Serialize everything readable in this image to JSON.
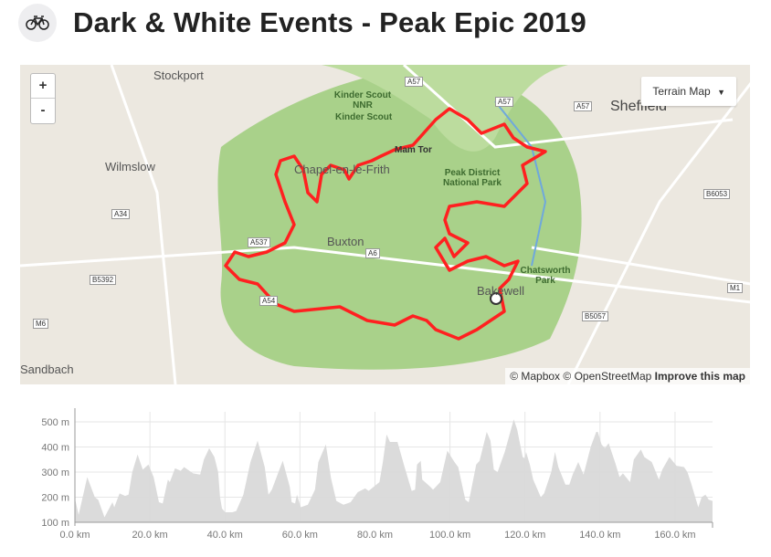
{
  "header": {
    "title": "Dark & White Events - Peak Epic 2019",
    "icon": "bicycle-icon"
  },
  "map": {
    "zoom_in": "+",
    "zoom_out": "-",
    "map_type": "Terrain Map",
    "places": [
      "Stockport",
      "Sheffield",
      "Wilmslow",
      "Chapel-en-le-Frith",
      "Buxton",
      "Bakewell",
      "Sandbach"
    ],
    "parks": [
      "Kinder Scout NNR",
      "Kinder Scout",
      "Mam Tor",
      "Peak District National Park",
      "Chatsworth Park"
    ],
    "roads": [
      "A57",
      "A57",
      "A57",
      "A34",
      "A537",
      "A6",
      "B5392",
      "A54",
      "M6",
      "B6053",
      "M1",
      "B5057"
    ],
    "attribution": {
      "mapbox": "© Mapbox",
      "osm": "© OpenStreetMap",
      "improve": "Improve this map"
    },
    "route_color": "#ff2020"
  },
  "chart_data": {
    "type": "area",
    "xlabel": "",
    "ylabel": "",
    "xlim": [
      0,
      170
    ],
    "ylim": [
      100,
      540
    ],
    "xticks": [
      "0.0 km",
      "20.0 km",
      "40.0 km",
      "60.0 km",
      "80.0 km",
      "100.0 km",
      "120.0 km",
      "140.0 km",
      "160.0 km"
    ],
    "yticks": [
      "100 m",
      "200 m",
      "300 m",
      "400 m",
      "500 m"
    ],
    "grid": true,
    "fill": "#d9d9d9",
    "points": [
      [
        0,
        195
      ],
      [
        1,
        130
      ],
      [
        3.3,
        280
      ],
      [
        5.3,
        200
      ],
      [
        6.2,
        190
      ],
      [
        7.9,
        120
      ],
      [
        10,
        180
      ],
      [
        10.5,
        160
      ],
      [
        11.9,
        215
      ],
      [
        13.4,
        205
      ],
      [
        14.3,
        210
      ],
      [
        15.3,
        300
      ],
      [
        16.7,
        370
      ],
      [
        18.1,
        310
      ],
      [
        19.6,
        330
      ],
      [
        21,
        280
      ],
      [
        22.4,
        180
      ],
      [
        23.4,
        175
      ],
      [
        24.8,
        270
      ],
      [
        25.3,
        260
      ],
      [
        26.7,
        315
      ],
      [
        28.2,
        305
      ],
      [
        29.1,
        320
      ],
      [
        31.5,
        295
      ],
      [
        33.4,
        290
      ],
      [
        34.4,
        350
      ],
      [
        35.8,
        395
      ],
      [
        37.2,
        360
      ],
      [
        38.2,
        300
      ],
      [
        38.7,
        200
      ],
      [
        39.2,
        155
      ],
      [
        40.1,
        140
      ],
      [
        42,
        140
      ],
      [
        43,
        145
      ],
      [
        44.9,
        210
      ],
      [
        46.8,
        340
      ],
      [
        48.7,
        425
      ],
      [
        50.6,
        320
      ],
      [
        51.6,
        210
      ],
      [
        52.5,
        230
      ],
      [
        55.4,
        345
      ],
      [
        57.3,
        240
      ],
      [
        57.8,
        180
      ],
      [
        58.7,
        175
      ],
      [
        59.2,
        210
      ],
      [
        60.2,
        160
      ],
      [
        62.1,
        170
      ],
      [
        64,
        230
      ],
      [
        64.9,
        340
      ],
      [
        66.9,
        410
      ],
      [
        68.3,
        275
      ],
      [
        69.7,
        185
      ],
      [
        71.6,
        170
      ],
      [
        73.5,
        180
      ],
      [
        75.4,
        220
      ],
      [
        77.4,
        235
      ],
      [
        78.3,
        225
      ],
      [
        81.2,
        260
      ],
      [
        82.1,
        340
      ],
      [
        83.1,
        450
      ],
      [
        84,
        420
      ],
      [
        86,
        420
      ],
      [
        87.9,
        320
      ],
      [
        89.8,
        225
      ],
      [
        90.7,
        230
      ],
      [
        91.2,
        330
      ],
      [
        92.2,
        345
      ],
      [
        92.6,
        270
      ],
      [
        94.5,
        245
      ],
      [
        95.5,
        230
      ],
      [
        97.4,
        260
      ],
      [
        99.3,
        385
      ],
      [
        101.2,
        340
      ],
      [
        102.2,
        320
      ],
      [
        104.1,
        190
      ],
      [
        105,
        180
      ],
      [
        107,
        330
      ],
      [
        107.9,
        345
      ],
      [
        109.8,
        460
      ],
      [
        110.8,
        425
      ],
      [
        111.7,
        310
      ],
      [
        112.7,
        300
      ],
      [
        114.6,
        380
      ],
      [
        117,
        510
      ],
      [
        117.9,
        470
      ],
      [
        119.4,
        360
      ],
      [
        119.9,
        355
      ],
      [
        120.3,
        380
      ],
      [
        121.3,
        330
      ],
      [
        122.2,
        270
      ],
      [
        124.2,
        200
      ],
      [
        125.1,
        215
      ],
      [
        127,
        300
      ],
      [
        128,
        380
      ],
      [
        128.9,
        320
      ],
      [
        130.8,
        250
      ],
      [
        131.8,
        250
      ],
      [
        132.7,
        290
      ],
      [
        134.2,
        340
      ],
      [
        135.6,
        290
      ],
      [
        137.5,
        400
      ],
      [
        139,
        460
      ],
      [
        139.4,
        460
      ],
      [
        140.4,
        410
      ],
      [
        141.3,
        395
      ],
      [
        142.3,
        415
      ],
      [
        144.2,
        330
      ],
      [
        145.2,
        280
      ],
      [
        146.1,
        295
      ],
      [
        148,
        260
      ],
      [
        149,
        350
      ],
      [
        150.9,
        390
      ],
      [
        151.8,
        360
      ],
      [
        153.8,
        340
      ],
      [
        155.7,
        270
      ],
      [
        156.6,
        310
      ],
      [
        158.5,
        360
      ],
      [
        160.4,
        325
      ],
      [
        162.4,
        320
      ],
      [
        163.3,
        300
      ],
      [
        164.3,
        255
      ],
      [
        166.2,
        160
      ],
      [
        167.1,
        200
      ],
      [
        168.1,
        210
      ],
      [
        169,
        190
      ],
      [
        170,
        185
      ]
    ]
  }
}
